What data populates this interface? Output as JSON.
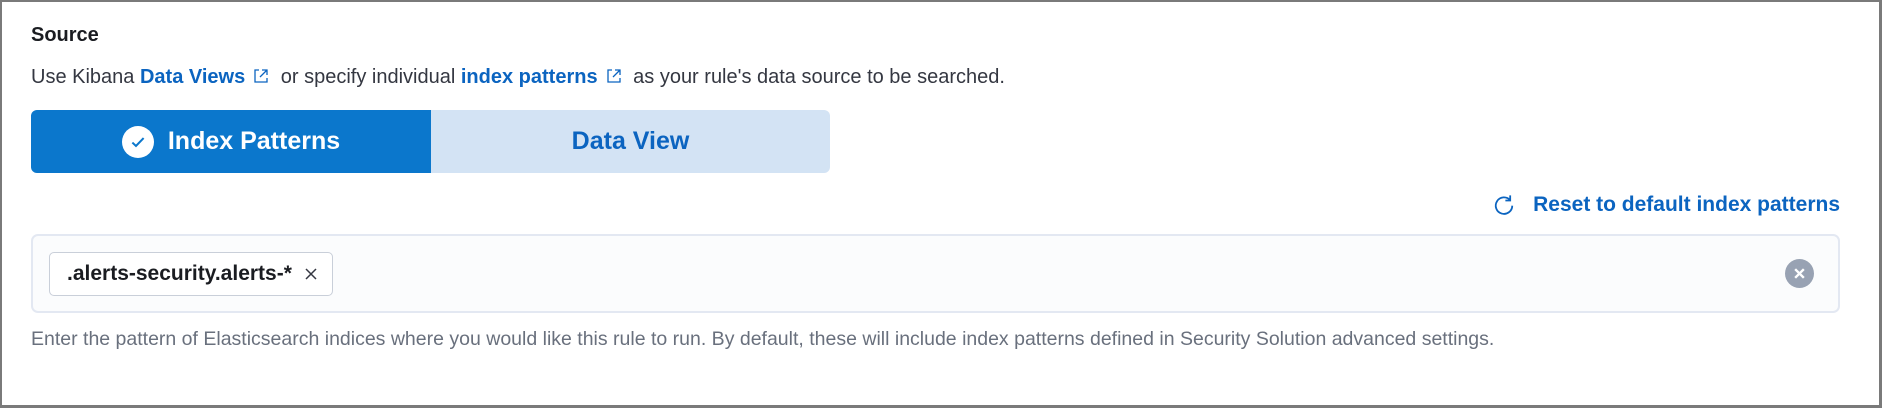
{
  "section": {
    "title": "Source"
  },
  "description": {
    "prefix": "Use Kibana ",
    "link1": "Data Views",
    "middle": " or specify individual ",
    "link2": "index patterns",
    "suffix": " as your rule's data source to be searched."
  },
  "toggle": {
    "options": [
      {
        "label": "Index Patterns",
        "selected": true
      },
      {
        "label": "Data View",
        "selected": false
      }
    ]
  },
  "reset_link": "Reset to default index patterns",
  "index_input": {
    "chips": [
      ".alerts-security.alerts-*"
    ]
  },
  "help_text": "Enter the pattern of Elasticsearch indices where you would like this rule to run. By default, these will include index patterns defined in Security Solution advanced settings.",
  "colors": {
    "primary": "#0b77cc",
    "link": "#0b64c0",
    "unselected": "#d3e3f4"
  }
}
